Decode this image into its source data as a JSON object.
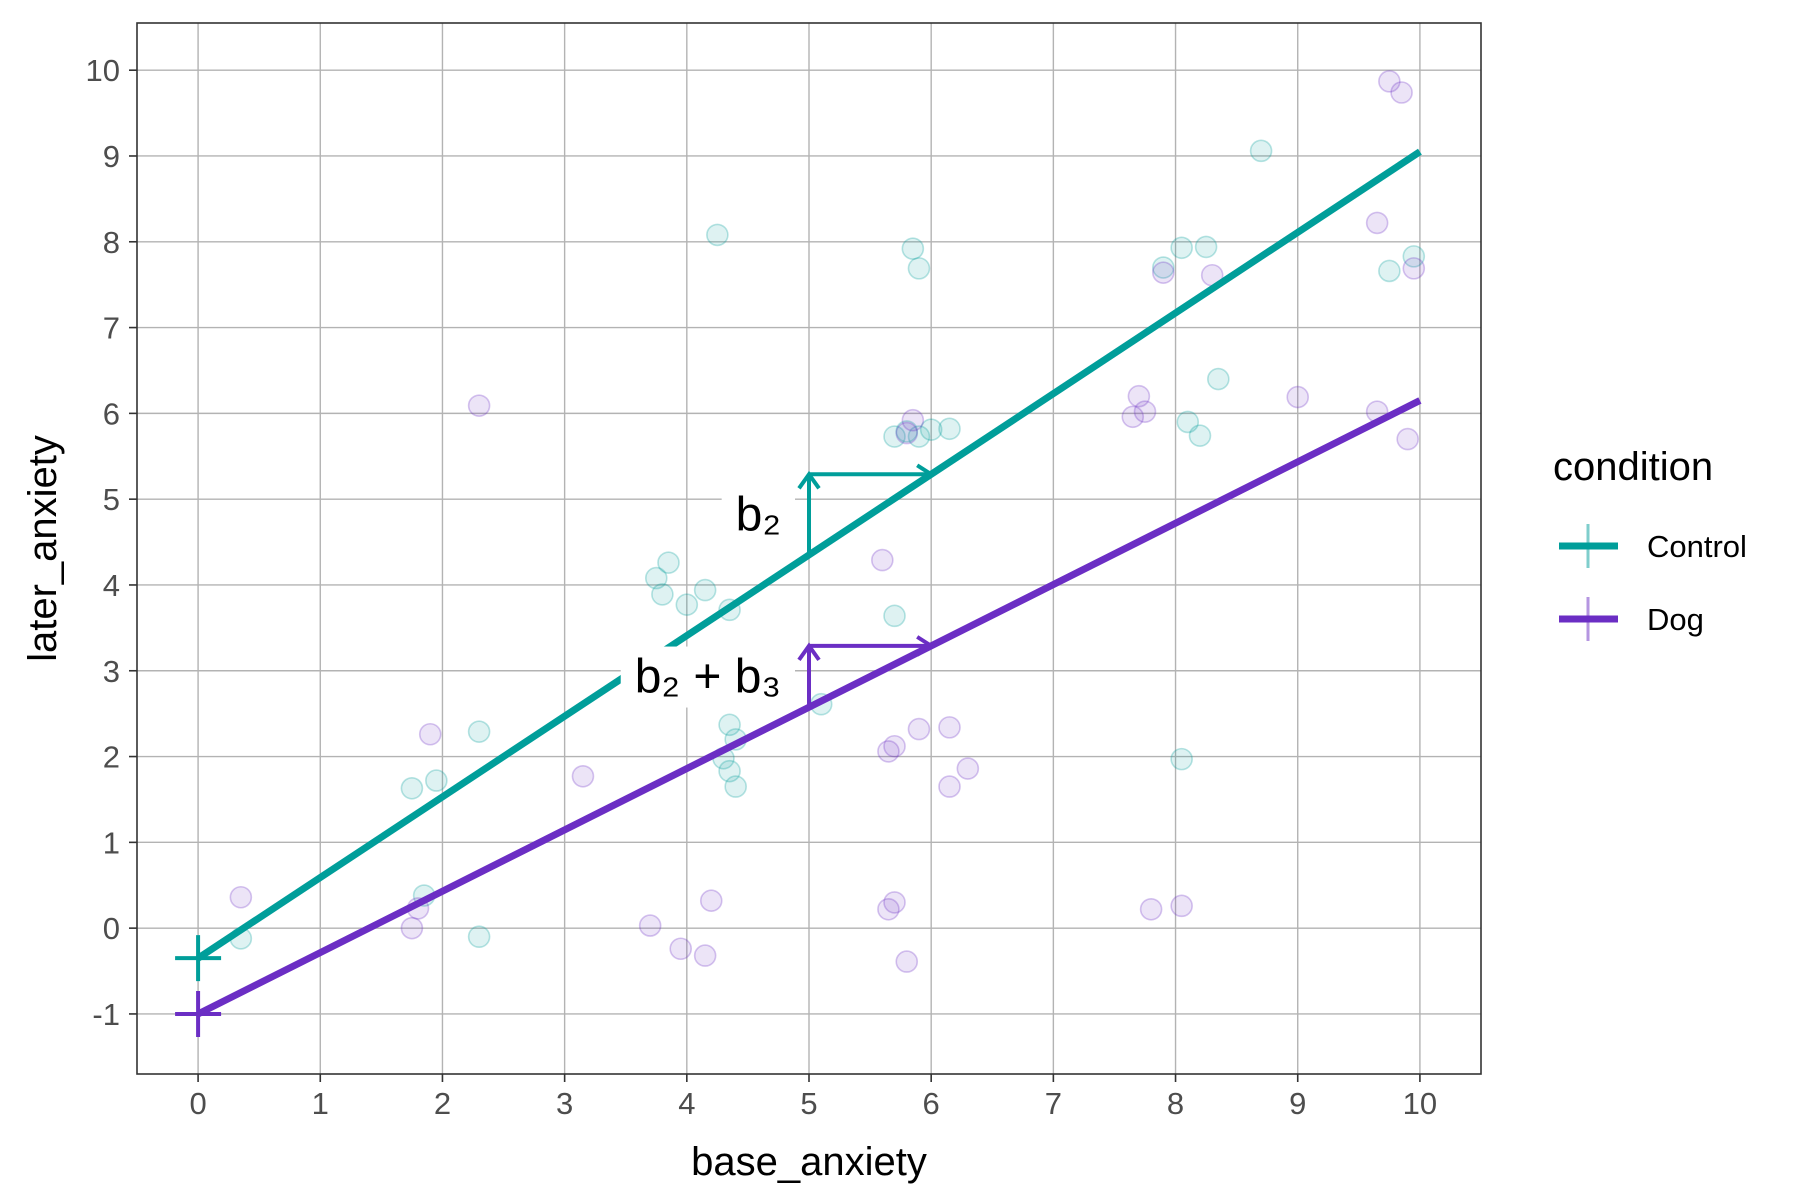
{
  "chart_data": {
    "type": "scatter",
    "xlabel": "base_anxiety",
    "ylabel": "later_anxiety",
    "xlim": [
      -0.5,
      10.5
    ],
    "ylim": [
      -1.7,
      10.55
    ],
    "x_ticks": [
      "0",
      "1",
      "2",
      "3",
      "4",
      "5",
      "6",
      "7",
      "8",
      "9",
      "10"
    ],
    "y_ticks": [
      "-1",
      "0",
      "1",
      "2",
      "3",
      "4",
      "5",
      "6",
      "7",
      "8",
      "9",
      "10"
    ],
    "grid": true,
    "legend": {
      "title": "condition",
      "position": "right",
      "entries": [
        "Control",
        "Dog"
      ]
    },
    "series": [
      {
        "name": "Control",
        "color": "#009e9a",
        "line": {
          "intercept": -0.35,
          "slope": 0.94
        },
        "points": [
          [
            0.35,
            -0.12
          ],
          [
            1.75,
            1.63
          ],
          [
            1.95,
            1.72
          ],
          [
            1.85,
            0.38
          ],
          [
            2.3,
            2.29
          ],
          [
            2.3,
            -0.1
          ],
          [
            3.75,
            4.08
          ],
          [
            3.8,
            3.89
          ],
          [
            3.85,
            4.26
          ],
          [
            4.0,
            3.77
          ],
          [
            4.15,
            3.94
          ],
          [
            4.35,
            3.71
          ],
          [
            4.25,
            8.08
          ],
          [
            4.3,
            1.98
          ],
          [
            4.35,
            1.83
          ],
          [
            4.4,
            1.65
          ],
          [
            4.35,
            2.37
          ],
          [
            4.4,
            2.2
          ],
          [
            5.1,
            2.61
          ],
          [
            5.7,
            3.64
          ],
          [
            5.7,
            5.73
          ],
          [
            5.8,
            5.79
          ],
          [
            5.9,
            5.73
          ],
          [
            6.0,
            5.81
          ],
          [
            6.15,
            5.82
          ],
          [
            5.85,
            7.92
          ],
          [
            5.9,
            7.69
          ],
          [
            7.9,
            7.7
          ],
          [
            8.05,
            7.93
          ],
          [
            8.25,
            7.94
          ],
          [
            8.1,
            5.9
          ],
          [
            8.2,
            5.74
          ],
          [
            8.35,
            6.4
          ],
          [
            8.05,
            1.97
          ],
          [
            8.7,
            9.06
          ],
          [
            9.75,
            7.66
          ],
          [
            9.95,
            7.83
          ]
        ]
      },
      {
        "name": "Dog",
        "color": "#6b2ec4",
        "line": {
          "intercept": -1.0,
          "slope": 0.715
        },
        "points": [
          [
            0.35,
            0.36
          ],
          [
            1.75,
            0.0
          ],
          [
            1.8,
            0.23
          ],
          [
            1.9,
            2.26
          ],
          [
            2.3,
            6.09
          ],
          [
            3.15,
            1.77
          ],
          [
            3.7,
            0.03
          ],
          [
            3.95,
            -0.24
          ],
          [
            4.2,
            0.32
          ],
          [
            4.15,
            -0.32
          ],
          [
            5.6,
            4.29
          ],
          [
            5.65,
            2.06
          ],
          [
            5.7,
            2.12
          ],
          [
            5.65,
            0.22
          ],
          [
            5.7,
            0.3
          ],
          [
            5.8,
            -0.39
          ],
          [
            5.85,
            5.92
          ],
          [
            5.8,
            5.77
          ],
          [
            5.9,
            2.32
          ],
          [
            6.15,
            2.34
          ],
          [
            6.15,
            1.65
          ],
          [
            6.3,
            1.86
          ],
          [
            7.65,
            5.96
          ],
          [
            7.7,
            6.2
          ],
          [
            7.75,
            6.02
          ],
          [
            7.8,
            0.22
          ],
          [
            8.05,
            0.26
          ],
          [
            7.9,
            7.64
          ],
          [
            8.3,
            7.61
          ],
          [
            9.0,
            6.19
          ],
          [
            9.65,
            6.02
          ],
          [
            9.65,
            8.22
          ],
          [
            9.75,
            9.87
          ],
          [
            9.85,
            9.74
          ],
          [
            9.9,
            5.7
          ],
          [
            9.95,
            7.69
          ]
        ]
      }
    ],
    "annotations": [
      {
        "text": "b₂",
        "series": "Control"
      },
      {
        "text": "b₂ + b₃",
        "series": "Dog"
      }
    ]
  }
}
